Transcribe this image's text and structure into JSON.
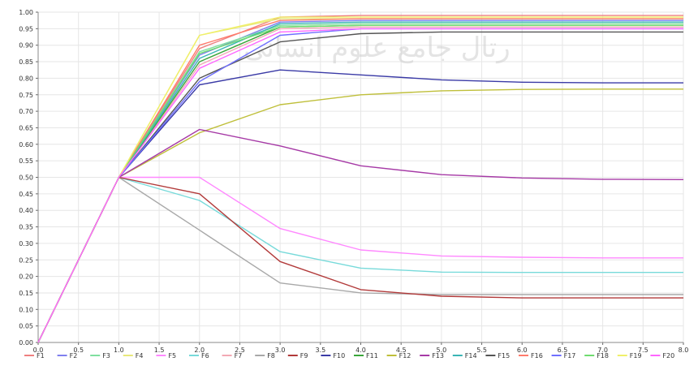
{
  "chart_data": {
    "type": "line",
    "title": "",
    "xlabel": "",
    "ylabel": "",
    "xlim": [
      0,
      8
    ],
    "ylim": [
      0,
      1.0
    ],
    "grid": true,
    "legend_placement": "bottom",
    "x": [
      0,
      1,
      2,
      3,
      4,
      5,
      6,
      7,
      8
    ],
    "x_ticks": [
      "0.0",
      "0.5",
      "1.0",
      "1.5",
      "2.0",
      "2.5",
      "3.0",
      "3.5",
      "4.0",
      "4.5",
      "5.0",
      "5.5",
      "6.0",
      "6.5",
      "7.0",
      "7.5",
      "8.0"
    ],
    "y_ticks": [
      "0.00",
      "0.05",
      "0.10",
      "0.15",
      "0.20",
      "0.25",
      "0.30",
      "0.35",
      "0.40",
      "0.45",
      "0.50",
      "0.55",
      "0.60",
      "0.65",
      "0.70",
      "0.75",
      "0.80",
      "0.85",
      "0.90",
      "0.95",
      "1.00"
    ],
    "series": [
      {
        "name": "F1",
        "color": "#ef7f7f",
        "values": [
          0,
          0.5,
          0.89,
          0.985,
          0.99,
          0.99,
          0.99,
          0.99,
          0.99
        ]
      },
      {
        "name": "F2",
        "color": "#7f7fef",
        "values": [
          0,
          0.5,
          0.87,
          0.97,
          0.975,
          0.975,
          0.975,
          0.975,
          0.975
        ]
      },
      {
        "name": "F3",
        "color": "#7fdf9f",
        "values": [
          0,
          0.5,
          0.88,
          0.96,
          0.965,
          0.965,
          0.965,
          0.965,
          0.965
        ]
      },
      {
        "name": "F4",
        "color": "#e8e87a",
        "values": [
          0,
          0.5,
          0.93,
          0.98,
          0.98,
          0.98,
          0.98,
          0.98,
          0.98
        ]
      },
      {
        "name": "F5",
        "color": "#ff88ff",
        "values": [
          0,
          0.5,
          0.5,
          0.345,
          0.28,
          0.262,
          0.258,
          0.256,
          0.256
        ]
      },
      {
        "name": "F6",
        "color": "#77dada",
        "values": [
          0,
          0.5,
          0.43,
          0.275,
          0.225,
          0.213,
          0.212,
          0.212,
          0.212
        ]
      },
      {
        "name": "F7",
        "color": "#f2a9b4",
        "values": [
          0,
          0.5,
          0.84,
          0.95,
          0.955,
          0.955,
          0.955,
          0.955,
          0.955
        ]
      },
      {
        "name": "F8",
        "color": "#a8a8a8",
        "values": [
          0,
          0.5,
          0.34,
          0.18,
          0.15,
          0.145,
          0.145,
          0.145,
          0.145
        ]
      },
      {
        "name": "F9",
        "color": "#b23a3a",
        "values": [
          0,
          0.5,
          0.45,
          0.245,
          0.16,
          0.14,
          0.135,
          0.135,
          0.135
        ]
      },
      {
        "name": "F10",
        "color": "#3a3aa6",
        "values": [
          0,
          0.5,
          0.78,
          0.825,
          0.81,
          0.795,
          0.788,
          0.786,
          0.786
        ]
      },
      {
        "name": "F11",
        "color": "#3aa63a",
        "values": [
          0,
          0.5,
          0.85,
          0.955,
          0.96,
          0.96,
          0.96,
          0.96,
          0.96
        ]
      },
      {
        "name": "F12",
        "color": "#bfbf3a",
        "values": [
          0,
          0.5,
          0.635,
          0.72,
          0.75,
          0.762,
          0.766,
          0.767,
          0.767
        ]
      },
      {
        "name": "F13",
        "color": "#a63aa6",
        "values": [
          0,
          0.5,
          0.645,
          0.595,
          0.535,
          0.508,
          0.498,
          0.494,
          0.493
        ]
      },
      {
        "name": "F14",
        "color": "#3ab5b5",
        "values": [
          0,
          0.5,
          0.86,
          0.965,
          0.97,
          0.97,
          0.97,
          0.97,
          0.97
        ]
      },
      {
        "name": "F15",
        "color": "#555555",
        "values": [
          0,
          0.5,
          0.8,
          0.91,
          0.935,
          0.94,
          0.94,
          0.94,
          0.94
        ]
      },
      {
        "name": "F16",
        "color": "#ff7b6b",
        "values": [
          0,
          0.5,
          0.9,
          0.975,
          0.98,
          0.98,
          0.98,
          0.98,
          0.98
        ]
      },
      {
        "name": "F17",
        "color": "#6f6fff",
        "values": [
          0,
          0.5,
          0.79,
          0.93,
          0.95,
          0.95,
          0.95,
          0.95,
          0.95
        ]
      },
      {
        "name": "F18",
        "color": "#6fdc6f",
        "values": [
          0,
          0.5,
          0.875,
          0.955,
          0.96,
          0.96,
          0.96,
          0.96,
          0.96
        ]
      },
      {
        "name": "F19",
        "color": "#f0f06a",
        "values": [
          0,
          0.5,
          0.93,
          0.985,
          0.985,
          0.985,
          0.985,
          0.985,
          0.985
        ]
      },
      {
        "name": "F20",
        "color": "#ff66ff",
        "values": [
          0,
          0.5,
          0.83,
          0.94,
          0.95,
          0.95,
          0.95,
          0.95,
          0.95
        ]
      }
    ]
  },
  "watermark_text": "رتال جامع علوم انسانی"
}
